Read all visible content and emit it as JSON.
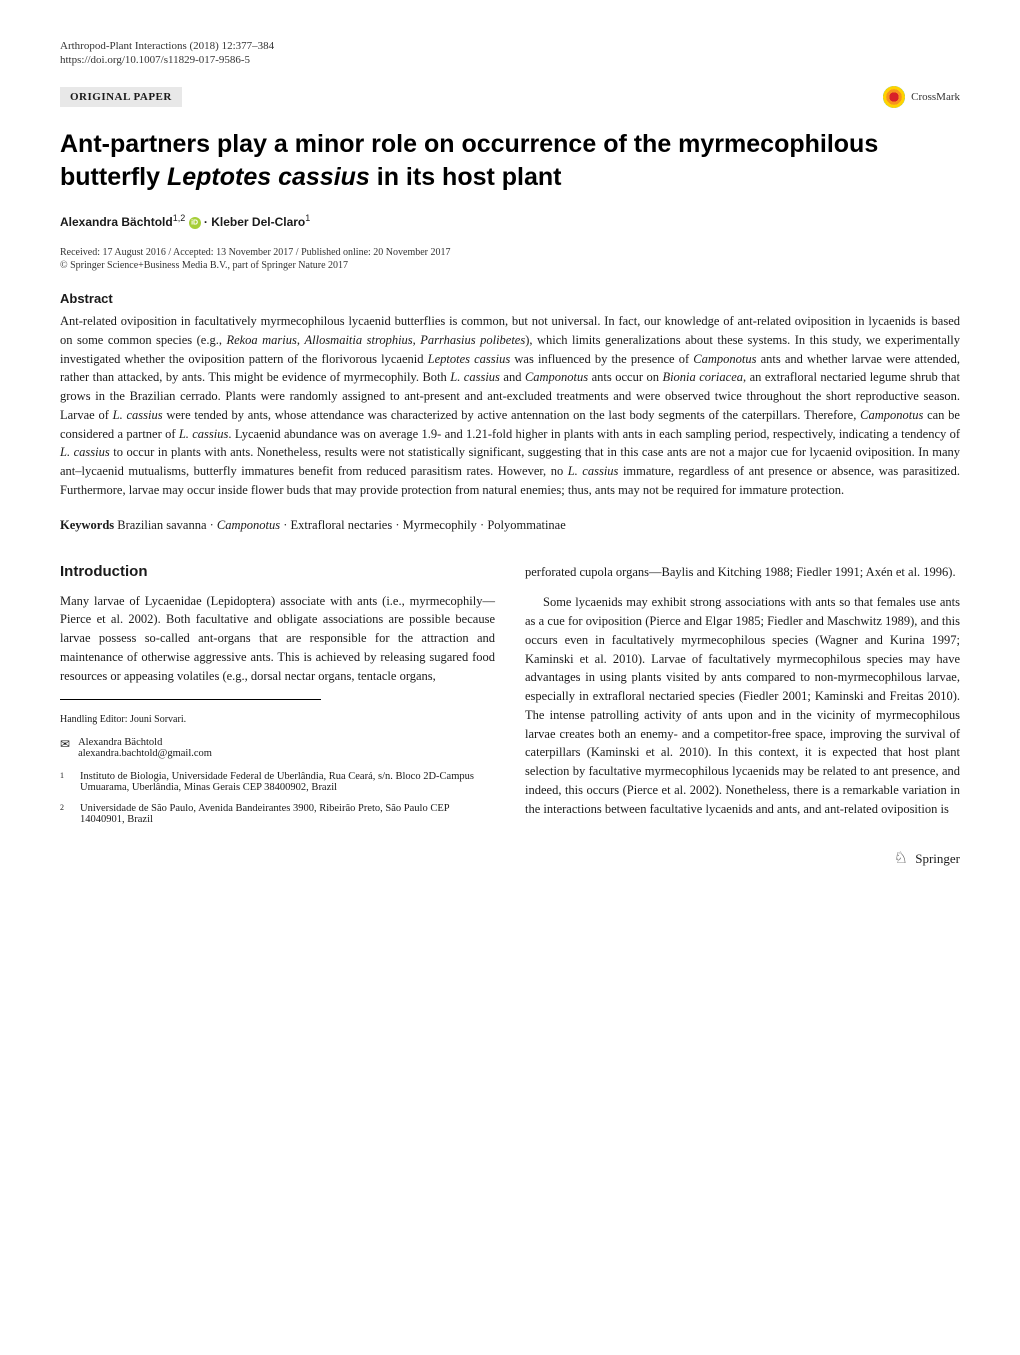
{
  "journal_meta": "Arthropod-Plant Interactions (2018) 12:377–384",
  "doi": "https://doi.org/10.1007/s11829-017-9586-5",
  "paper_type": "ORIGINAL PAPER",
  "crossmark_label": "CrossMark",
  "title_html": "Ant-partners play a minor role on occurrence of the myrmecophilous butterfly <em>Leptotes cassius</em> in its host plant",
  "authors_html": "Alexandra Bächtold<sup>1,2</sup> <span class='orcid-icon' data-name='orcid-icon' data-interactable='false'></span> · Kleber Del-Claro<sup>1</sup>",
  "dates": "Received: 17 August 2016 / Accepted: 13 November 2017 / Published online: 20 November 2017",
  "copyright": "© Springer Science+Business Media B.V., part of Springer Nature 2017",
  "abstract_heading": "Abstract",
  "abstract_html": "Ant-related oviposition in facultatively myrmecophilous lycaenid butterflies is common, but not universal. In fact, our knowledge of ant-related oviposition in lycaenids is based on some common species (e.g., <em>Rekoa marius</em>, <em>Allosmaitia strophius, Parrhasius polibetes</em>), which limits generalizations about these systems. In this study, we experimentally investigated whether the oviposition pattern of the florivorous lycaenid <em>Leptotes cassius</em> was influenced by the presence of <em>Camponotus</em> ants and whether larvae were attended, rather than attacked, by ants. This might be evidence of myrmecophily. Both <em>L. cassius</em> and <em>Camponotus</em> ants occur on <em>Bionia coriacea</em>, an extrafloral nectaried legume shrub that grows in the Brazilian cerrado. Plants were randomly assigned to ant-present and ant-excluded treatments and were observed twice throughout the short reproductive season. Larvae of <em>L. cassius</em> were tended by ants, whose attendance was characterized by active antennation on the last body segments of the caterpillars. Therefore, <em>Camponotus</em> can be considered a partner of <em>L. cassius</em>. Lycaenid abundance was on average 1.9- and 1.21-fold higher in plants with ants in each sampling period, respectively, indicating a tendency of <em>L. cassius</em> to occur in plants with ants. Nonetheless, results were not statistically significant, suggesting that in this case ants are not a major cue for lycaenid oviposition. In many ant–lycaenid mutualisms, butterfly immatures benefit from reduced parasitism rates. However, no <em>L. cassius</em> immature, regardless of ant presence or absence, was parasitized. Furthermore, larvae may occur inside flower buds that may provide protection from natural enemies; thus, ants may not be required for immature protection.",
  "keywords_label": "Keywords",
  "keywords_html": "Brazilian savanna · <em>Camponotus</em> · Extrafloral nectaries · Myrmecophily · Polyommatinae",
  "introduction_heading": "Introduction",
  "intro_p1_html": "Many larvae of Lycaenidae (Lepidoptera) associate with ants (i.e., myrmecophily—Pierce et al. 2002). Both facultative and obligate associations are possible because larvae possess so-called ant-organs that are responsible for the attraction and maintenance of otherwise aggressive ants. This is achieved by releasing sugared food resources or appeasing volatiles (e.g., dorsal nectar organs, tentacle organs,",
  "editor_note": "Handling Editor: Jouni Sorvari.",
  "corresponding_name": "Alexandra Bächtold",
  "corresponding_email": "alexandra.bachtold@gmail.com",
  "affiliation1_html": "Instituto de Biologia, Universidade Federal de Uberlândia, Rua Ceará, s/n. Bloco 2D-Campus Umuarama, Uberlândia, Minas Gerais CEP 38400902, Brazil",
  "affiliation2_html": "Universidade de São Paulo, Avenida Bandeirantes 3900, Ribeirão Preto, São Paulo CEP 14040901, Brazil",
  "col2_p1_html": "perforated cupola organs—Baylis and Kitching 1988; Fiedler 1991; Axén et al. 1996).",
  "col2_p2_html": "Some lycaenids may exhibit strong associations with ants so that females use ants as a cue for oviposition (Pierce and Elgar 1985; Fiedler and Maschwitz 1989), and this occurs even in facultatively myrmecophilous species (Wagner and Kurina 1997; Kaminski et al. 2010). Larvae of facultatively myrmecophilous species may have advantages in using plants visited by ants compared to non-myrmecophilous larvae, especially in extrafloral nectaried species (Fiedler 2001; Kaminski and Freitas 2010). The intense patrolling activity of ants upon and in the vicinity of myrmecophilous larvae creates both an enemy- and a competitor-free space, improving the survival of caterpillars (Kaminski et al. 2010). In this context, it is expected that host plant selection by facultative myrmecophilous lycaenids may be related to ant presence, and indeed, this occurs (Pierce et al. 2002). Nonetheless, there is a remarkable variation in the interactions between facultative lycaenids and ants, and ant-related oviposition is",
  "springer_label": "Springer"
}
